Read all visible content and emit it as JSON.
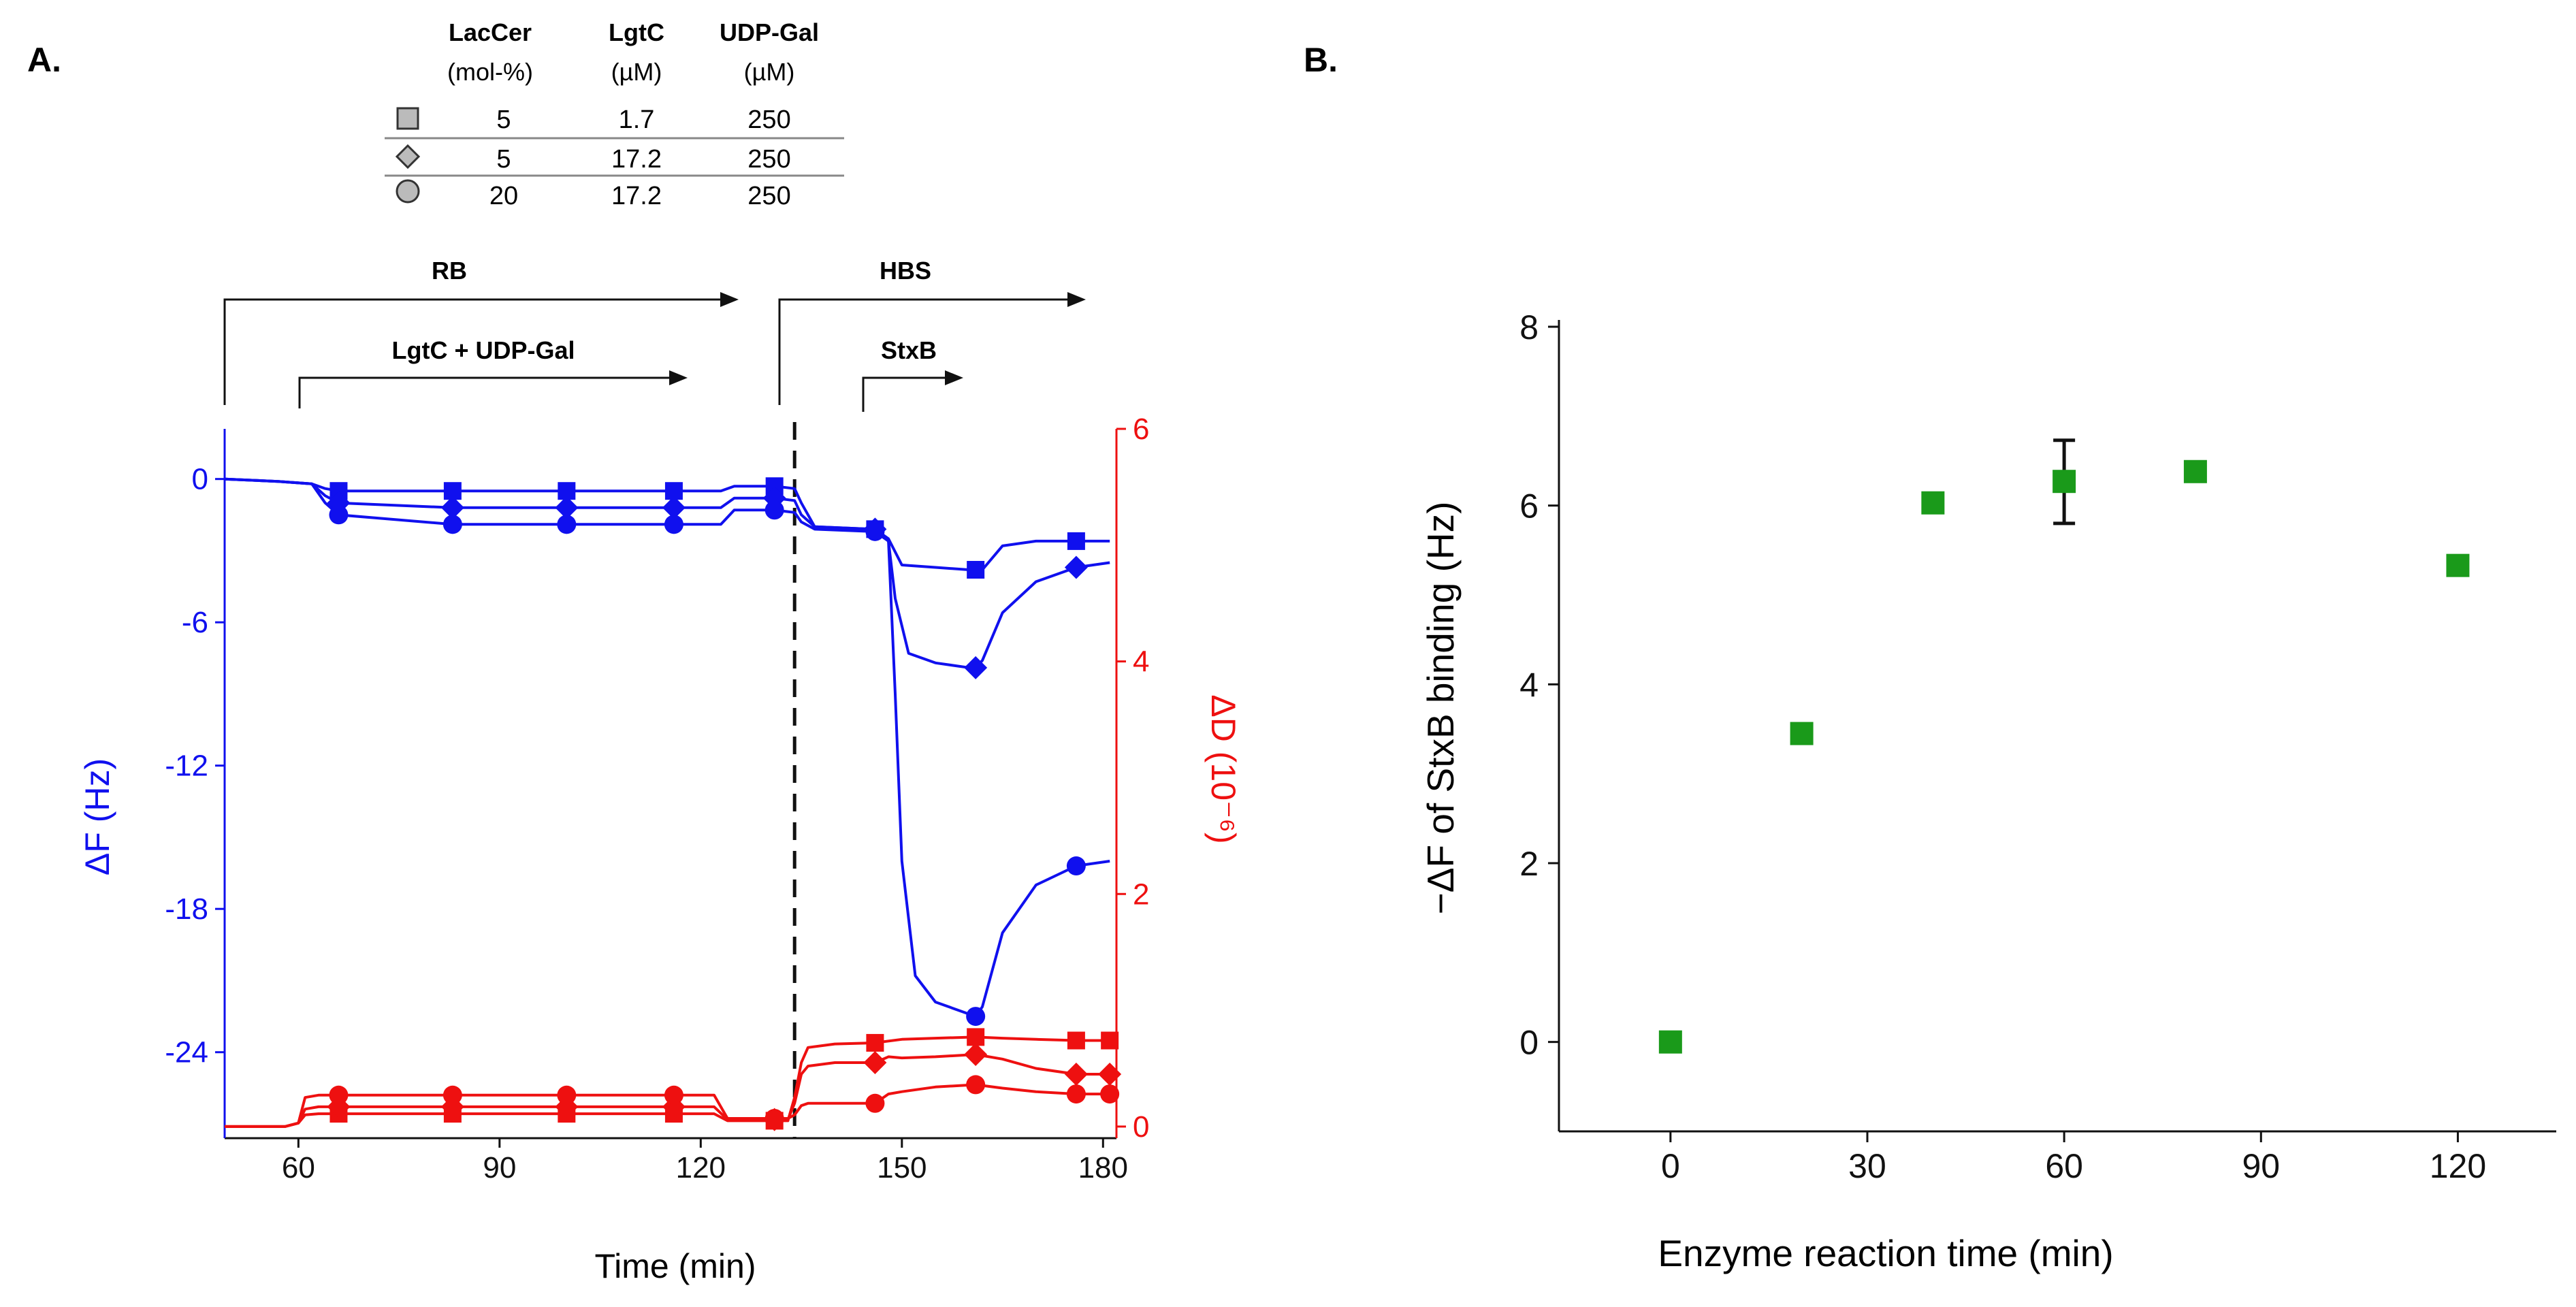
{
  "colors": {
    "blue": "#1010ee",
    "red": "#ee1010",
    "green": "#1a9a1a",
    "black": "#111111",
    "gray": "#bbbbbb"
  },
  "panel_a_label": "A.",
  "panel_b_label": "B.",
  "legend_table": {
    "headers": [
      "LacCer",
      "LgtC",
      "UDP-Gal"
    ],
    "units": [
      "(mol-%)",
      "(µM)",
      "(µM)"
    ],
    "rows": [
      {
        "marker": "square",
        "values": [
          "5",
          "1.7",
          "250"
        ]
      },
      {
        "marker": "diamond",
        "values": [
          "5",
          "17.2",
          "250"
        ]
      },
      {
        "marker": "circle",
        "values": [
          "20",
          "17.2",
          "250"
        ]
      }
    ]
  },
  "annotations": {
    "rb": "RB",
    "lgtc": "LgtC + UDP-Gal",
    "hbs": "HBS",
    "stxb": "StxB"
  },
  "chart_data": [
    {
      "type": "line",
      "title": "",
      "xlabel": "Time (min)",
      "ylabel": "ΔF (Hz)",
      "ylabel2": "ΔD (10⁻⁶)",
      "xlim": [
        49,
        182
      ],
      "ylim": [
        -27.6,
        2.1
      ],
      "ylim2": [
        -0.1,
        6.0
      ],
      "xticks": [
        60,
        90,
        120,
        150,
        180
      ],
      "yticks": [
        0,
        -6,
        -12,
        -18,
        -24
      ],
      "yticks2": [
        0,
        2,
        4,
        6
      ],
      "dashed_vline_x": 134,
      "series": [
        {
          "name": "ΔF square",
          "axis": "left",
          "marker": "square",
          "x": [
            49,
            57,
            62,
            64,
            66,
            83,
            100,
            116,
            123,
            125,
            131,
            134,
            135,
            137,
            146,
            148,
            150,
            155,
            160,
            161,
            162,
            165,
            170,
            176,
            181
          ],
          "y": [
            0,
            -0.1,
            -0.2,
            -0.4,
            -0.5,
            -0.5,
            -0.5,
            -0.5,
            -0.5,
            -0.3,
            -0.3,
            -0.4,
            -1.0,
            -2.0,
            -2.1,
            -2.5,
            -3.6,
            -3.7,
            -3.8,
            -3.8,
            -3.8,
            -2.8,
            -2.6,
            -2.6,
            -2.6
          ],
          "marker_x": [
            66,
            83,
            100,
            116,
            131,
            146,
            161,
            176
          ]
        },
        {
          "name": "ΔF diamond",
          "axis": "left",
          "marker": "diamond",
          "x": [
            49,
            57,
            62,
            64,
            66,
            83,
            100,
            116,
            123,
            125,
            131,
            134,
            135,
            137,
            146,
            148,
            149,
            151,
            155,
            160,
            161,
            162,
            165,
            170,
            176,
            181
          ],
          "y": [
            0,
            -0.1,
            -0.2,
            -0.7,
            -1.0,
            -1.2,
            -1.2,
            -1.2,
            -1.2,
            -0.8,
            -0.8,
            -0.9,
            -1.5,
            -2.0,
            -2.1,
            -2.6,
            -5.0,
            -7.3,
            -7.7,
            -7.9,
            -7.9,
            -7.6,
            -5.6,
            -4.3,
            -3.7,
            -3.5
          ],
          "marker_x": [
            66,
            83,
            100,
            116,
            131,
            146,
            161,
            176
          ]
        },
        {
          "name": "ΔF circle",
          "axis": "left",
          "marker": "circle",
          "x": [
            49,
            57,
            62,
            64,
            66,
            83,
            100,
            116,
            123,
            125,
            131,
            134,
            135,
            137,
            146,
            148,
            149,
            150,
            152,
            155,
            160,
            161,
            162,
            165,
            170,
            176,
            181
          ],
          "y": [
            0,
            -0.1,
            -0.2,
            -1.0,
            -1.5,
            -1.9,
            -1.9,
            -1.9,
            -1.9,
            -1.3,
            -1.3,
            -1.4,
            -1.8,
            -2.1,
            -2.2,
            -2.6,
            -9.0,
            -16.0,
            -20.8,
            -21.9,
            -22.4,
            -22.5,
            -22.1,
            -19.0,
            -17.0,
            -16.2,
            -16.0
          ],
          "marker_x": [
            66,
            83,
            100,
            116,
            131,
            146,
            161,
            176
          ]
        },
        {
          "name": "ΔD square",
          "axis": "right",
          "marker": "square",
          "x": [
            49,
            58,
            60,
            61,
            63,
            66,
            83,
            100,
            116,
            122,
            124,
            126,
            131,
            133,
            134,
            135,
            136,
            140,
            146,
            150,
            155,
            161,
            165,
            170,
            176,
            181
          ],
          "y": [
            0,
            0,
            0.03,
            0.1,
            0.11,
            0.11,
            0.11,
            0.11,
            0.11,
            0.11,
            0.05,
            0.05,
            0.05,
            0.05,
            0.25,
            0.55,
            0.68,
            0.71,
            0.72,
            0.75,
            0.76,
            0.77,
            0.76,
            0.75,
            0.74,
            0.74
          ],
          "marker_x": [
            66,
            83,
            100,
            116,
            131,
            146,
            161,
            176,
            181
          ]
        },
        {
          "name": "ΔD diamond",
          "axis": "right",
          "marker": "diamond",
          "x": [
            49,
            58,
            60,
            61,
            63,
            66,
            83,
            100,
            116,
            122,
            124,
            126,
            131,
            133,
            134,
            135,
            136,
            140,
            146,
            148,
            150,
            155,
            161,
            165,
            170,
            176,
            181
          ],
          "y": [
            0,
            0,
            0.03,
            0.15,
            0.17,
            0.17,
            0.17,
            0.17,
            0.17,
            0.17,
            0.06,
            0.06,
            0.06,
            0.06,
            0.2,
            0.45,
            0.52,
            0.55,
            0.55,
            0.6,
            0.59,
            0.6,
            0.62,
            0.58,
            0.5,
            0.45,
            0.45
          ],
          "marker_x": [
            66,
            83,
            100,
            116,
            131,
            146,
            161,
            176,
            181
          ]
        },
        {
          "name": "ΔD circle",
          "axis": "right",
          "marker": "circle",
          "x": [
            49,
            58,
            60,
            61,
            63,
            66,
            83,
            100,
            116,
            122,
            124,
            126,
            131,
            133,
            134,
            135,
            136,
            140,
            146,
            148,
            150,
            155,
            161,
            165,
            170,
            176,
            181
          ],
          "y": [
            0,
            0,
            0.03,
            0.25,
            0.27,
            0.27,
            0.27,
            0.27,
            0.27,
            0.27,
            0.07,
            0.07,
            0.07,
            0.07,
            0.1,
            0.18,
            0.2,
            0.2,
            0.2,
            0.28,
            0.3,
            0.34,
            0.36,
            0.33,
            0.3,
            0.28,
            0.28
          ],
          "marker_x": [
            66,
            83,
            100,
            116,
            131,
            146,
            161,
            176,
            181
          ]
        }
      ]
    },
    {
      "type": "scatter",
      "title": "",
      "xlabel": "Enzyme reaction time (min)",
      "ylabel": "−ΔF of StxB binding (Hz)",
      "xlim": [
        -17,
        135
      ],
      "ylim": [
        -1,
        8
      ],
      "xticks": [
        0,
        30,
        60,
        90,
        120
      ],
      "yticks": [
        0,
        2,
        4,
        6,
        8
      ],
      "x": [
        0,
        20,
        40,
        60,
        80,
        120
      ],
      "y": [
        0,
        3.45,
        6.03,
        6.27,
        6.38,
        5.33
      ],
      "error_bars": [
        {
          "x": 60,
          "low": 5.8,
          "high": 6.73
        }
      ]
    }
  ]
}
